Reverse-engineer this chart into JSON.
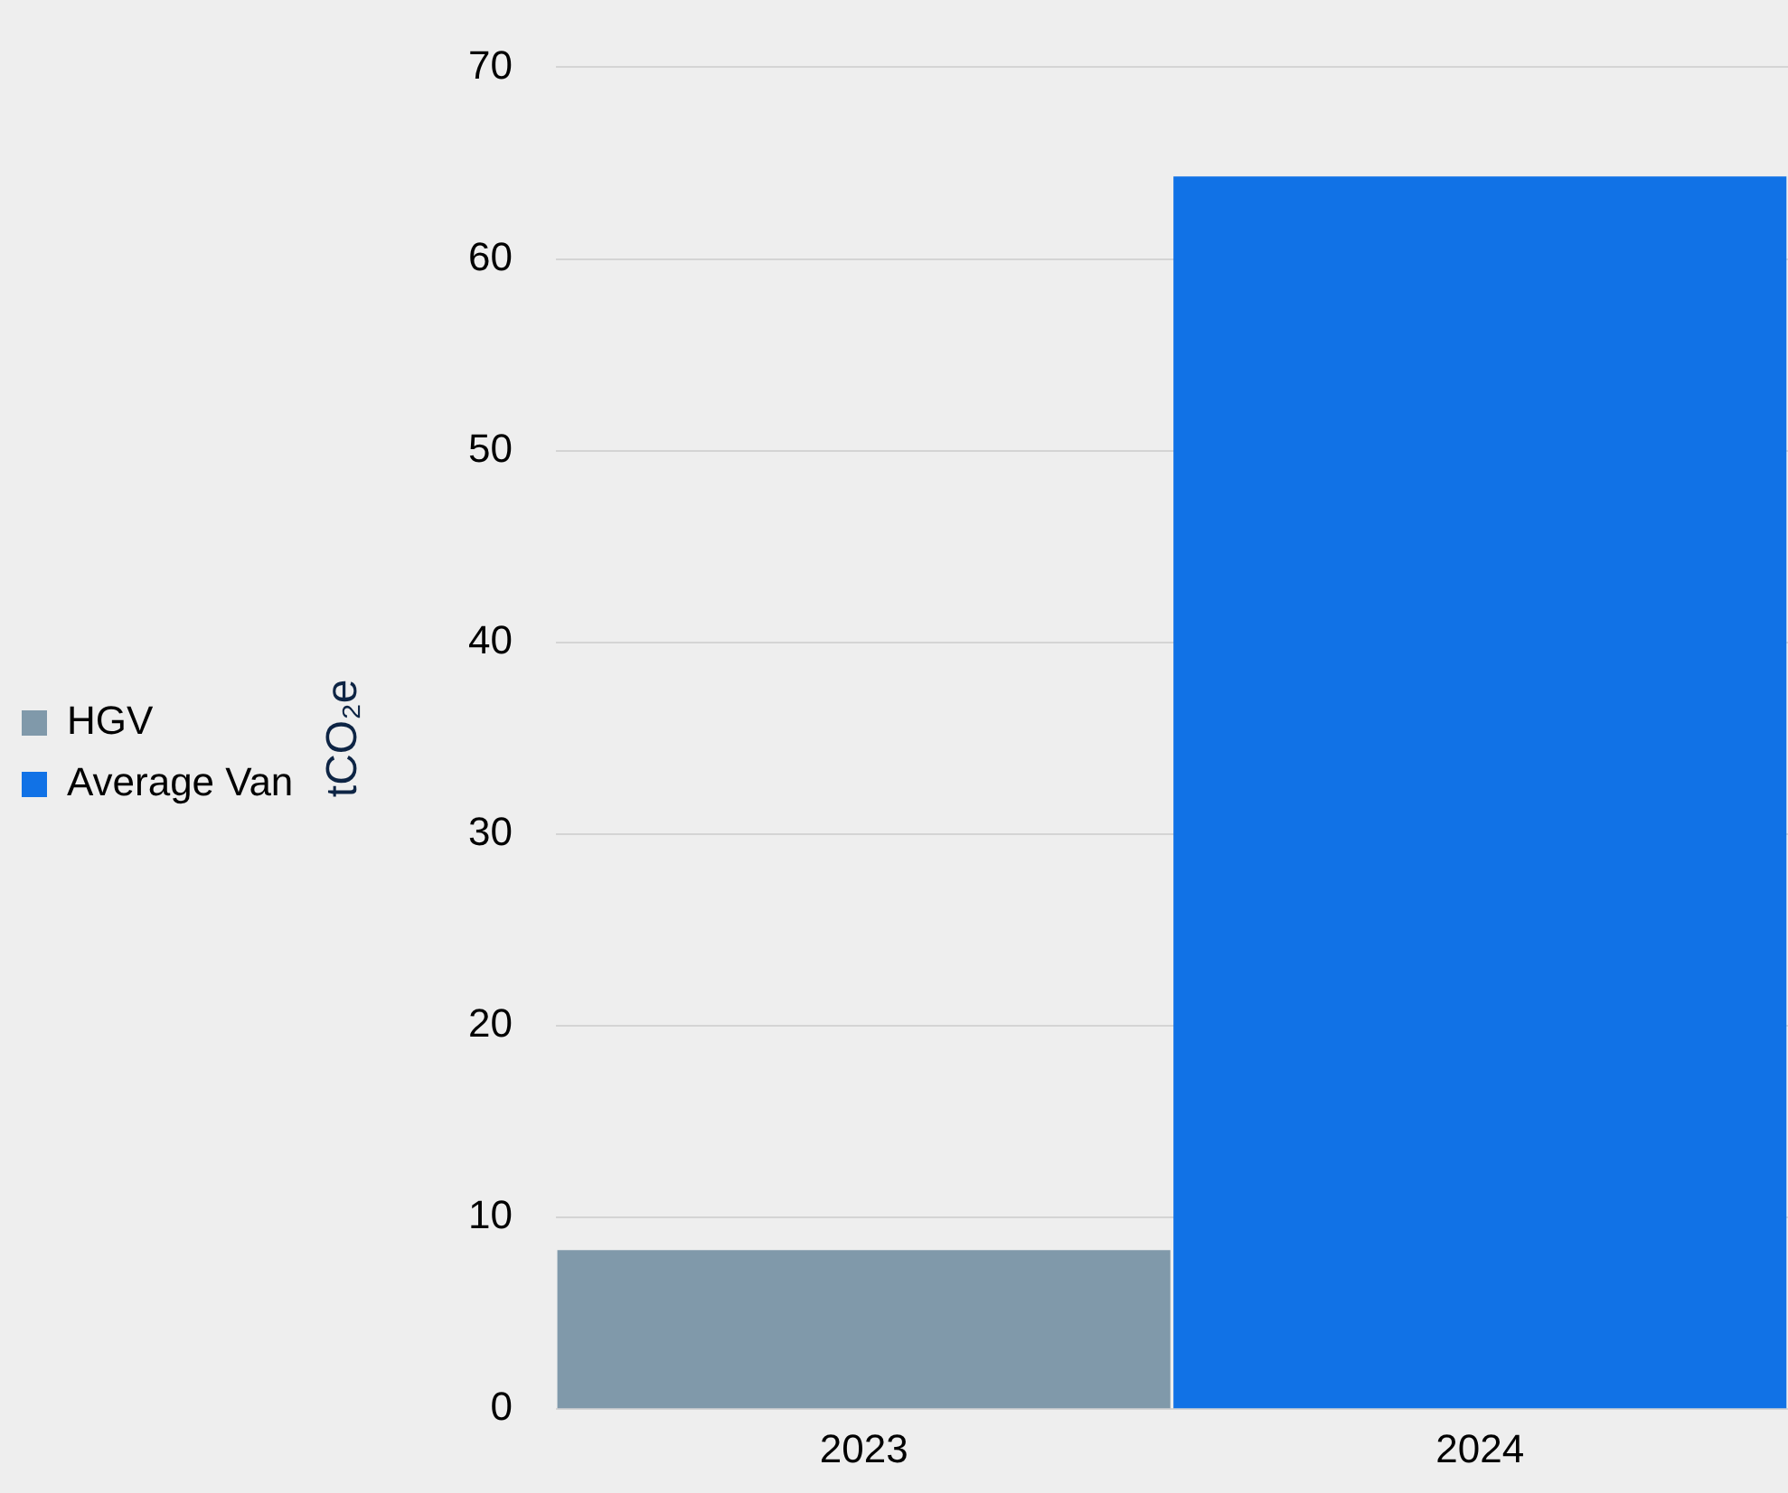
{
  "chart_data": {
    "type": "bar",
    "categories": [
      "2023",
      "2024"
    ],
    "ylabel": "tCO₂e",
    "series": [
      {
        "name": "HGV",
        "color": "#8099aa",
        "values": [
          8.3,
          null
        ]
      },
      {
        "name": "Average Van",
        "color": "#1172e6",
        "values": [
          null,
          64.3
        ]
      }
    ],
    "ylim": [
      0,
      70
    ],
    "yticks": [
      0,
      10,
      20,
      30,
      40,
      50,
      60,
      70
    ],
    "grid": "y",
    "legend": "left"
  }
}
